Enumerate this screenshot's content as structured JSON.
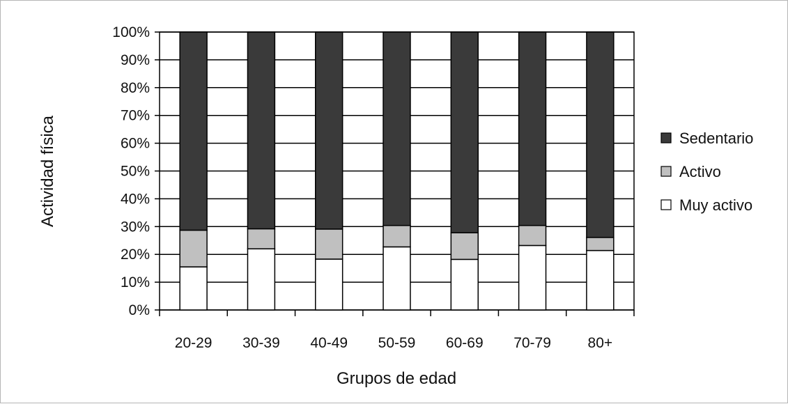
{
  "chart_data": {
    "type": "bar",
    "stacked": true,
    "percent": true,
    "title": "",
    "xlabel": "Grupos de edad",
    "ylabel": "Actividad física",
    "categories": [
      "20-29",
      "30-39",
      "40-49",
      "50-59",
      "60-69",
      "70-79",
      "80+"
    ],
    "series": [
      {
        "name": "Muy activo",
        "color": "#ffffff",
        "values": [
          15.5,
          22,
          18.3,
          22.7,
          18.2,
          23.2,
          21.4
        ]
      },
      {
        "name": "Activo",
        "color": "#c0c0c0",
        "values": [
          13.2,
          7.2,
          10.8,
          7.7,
          9.6,
          7.2,
          4.7
        ]
      },
      {
        "name": "Sedentario",
        "color": "#3a3a3a",
        "values": [
          71.3,
          70.8,
          70.9,
          69.6,
          72.2,
          69.6,
          73.9
        ]
      }
    ],
    "ylim": [
      0,
      100
    ],
    "yticks": [
      "0%",
      "10%",
      "20%",
      "30%",
      "40%",
      "50%",
      "60%",
      "70%",
      "80%",
      "90%",
      "100%"
    ],
    "grid": true,
    "legend": {
      "position": "right",
      "order": [
        "Sedentario",
        "Activo",
        "Muy activo"
      ]
    }
  }
}
